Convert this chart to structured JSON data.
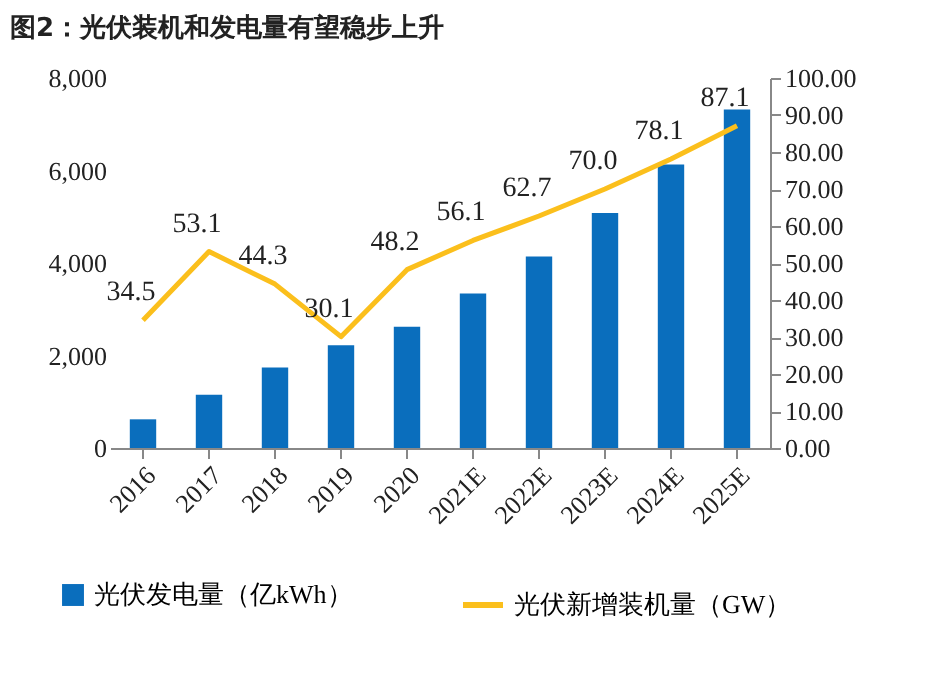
{
  "chart_data": {
    "type": "bar",
    "title": "图2：光伏装机和发电量有望稳步上升",
    "categories": [
      "2016",
      "2017",
      "2018",
      "2019",
      "2020",
      "2021E",
      "2022E",
      "2023E",
      "2024E",
      "2025E"
    ],
    "series": [
      {
        "name": "光伏发电量（亿kWh）",
        "color": "#0a6ebd",
        "values": [
          620,
          1150,
          1740,
          2220,
          2620,
          3340,
          4140,
          5080,
          6130,
          7320
        ]
      },
      {
        "name": "光伏新增装机量（GW）",
        "type": "line",
        "axis": "y2",
        "color": "#fbbf1c",
        "values": [
          34.5,
          53.1,
          44.3,
          30.1,
          48.2,
          56.1,
          62.7,
          70.0,
          78.1,
          87.1
        ],
        "value_labels": [
          "34.5",
          "53.1",
          "44.3",
          "30.1",
          "48.2",
          "56.1",
          "62.7",
          "70.0",
          "78.1",
          "87.1"
        ]
      }
    ],
    "ylim": [
      0,
      8000
    ],
    "yticks": [
      {
        "value": 0,
        "label": "0"
      },
      {
        "value": 2000,
        "label": "2,000"
      },
      {
        "value": 4000,
        "label": "4,000"
      },
      {
        "value": 6000,
        "label": "6,000"
      },
      {
        "value": 8000,
        "label": "8,000"
      }
    ],
    "y2lim": [
      0,
      100
    ],
    "y2ticks": [
      {
        "value": 0,
        "label": "0.00"
      },
      {
        "value": 10,
        "label": "10.00"
      },
      {
        "value": 20,
        "label": "20.00"
      },
      {
        "value": 30,
        "label": "30.00"
      },
      {
        "value": 40,
        "label": "40.00"
      },
      {
        "value": 50,
        "label": "50.00"
      },
      {
        "value": 60,
        "label": "60.00"
      },
      {
        "value": 70,
        "label": "70.00"
      },
      {
        "value": 80,
        "label": "80.00"
      },
      {
        "value": 90,
        "label": "90.00"
      },
      {
        "value": 100,
        "label": "100.00"
      }
    ],
    "legend": "bottom",
    "grid": false
  }
}
